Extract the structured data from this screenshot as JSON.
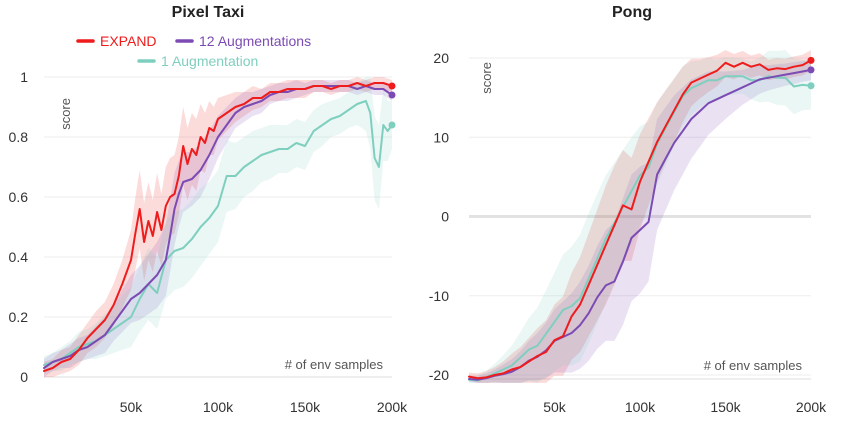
{
  "chart_data": [
    {
      "type": "line",
      "title": "Pixel Taxi",
      "xlabel": "# of env samples",
      "ylabel": "score",
      "xlim": [
        0,
        200000
      ],
      "ylim": [
        0,
        1
      ],
      "xticks": [
        50000,
        100000,
        150000,
        200000
      ],
      "xtick_labels": [
        "50k",
        "100k",
        "150k",
        "200k"
      ],
      "yticks": [
        0,
        0.2,
        0.4,
        0.6,
        0.8,
        1
      ],
      "ytick_labels": [
        "0",
        "0.2",
        "0.4",
        "0.6",
        "0.8",
        "1"
      ],
      "legend": "top",
      "series": [
        {
          "name": "EXPAND",
          "color": "#ee1c1c",
          "x": [
            0,
            5000,
            10000,
            15000,
            20000,
            25000,
            30000,
            35000,
            40000,
            45000,
            50000,
            52500,
            55000,
            57500,
            60000,
            62500,
            65000,
            67500,
            70000,
            72500,
            75000,
            77500,
            80000,
            82500,
            85000,
            87500,
            90000,
            92500,
            95000,
            97500,
            100000,
            105000,
            110000,
            115000,
            120000,
            125000,
            130000,
            135000,
            140000,
            145000,
            150000,
            155000,
            160000,
            165000,
            170000,
            175000,
            180000,
            185000,
            190000,
            195000,
            200000
          ],
          "values": [
            0.02,
            0.03,
            0.05,
            0.06,
            0.09,
            0.13,
            0.16,
            0.19,
            0.24,
            0.31,
            0.39,
            0.48,
            0.56,
            0.45,
            0.52,
            0.47,
            0.55,
            0.49,
            0.57,
            0.6,
            0.61,
            0.67,
            0.77,
            0.71,
            0.76,
            0.74,
            0.8,
            0.78,
            0.83,
            0.82,
            0.86,
            0.88,
            0.9,
            0.91,
            0.93,
            0.93,
            0.95,
            0.95,
            0.96,
            0.96,
            0.96,
            0.97,
            0.97,
            0.96,
            0.97,
            0.97,
            0.98,
            0.97,
            0.98,
            0.98,
            0.97
          ],
          "band": [
            0.03,
            0.03,
            0.04,
            0.04,
            0.05,
            0.05,
            0.06,
            0.06,
            0.07,
            0.08,
            0.1,
            0.12,
            0.13,
            0.13,
            0.13,
            0.12,
            0.13,
            0.12,
            0.13,
            0.13,
            0.13,
            0.13,
            0.13,
            0.12,
            0.12,
            0.12,
            0.11,
            0.1,
            0.09,
            0.08,
            0.07,
            0.06,
            0.05,
            0.04,
            0.04,
            0.03,
            0.03,
            0.03,
            0.03,
            0.03,
            0.03,
            0.02,
            0.02,
            0.02,
            0.02,
            0.02,
            0.02,
            0.02,
            0.02,
            0.02,
            0.02
          ]
        },
        {
          "name": "12 Augmentations",
          "color": "#7b4bb3",
          "x": [
            0,
            5000,
            10000,
            15000,
            20000,
            25000,
            30000,
            35000,
            40000,
            45000,
            50000,
            55000,
            60000,
            65000,
            70000,
            72500,
            75000,
            77500,
            80000,
            85000,
            90000,
            95000,
            100000,
            105000,
            110000,
            115000,
            120000,
            125000,
            130000,
            135000,
            140000,
            145000,
            150000,
            155000,
            160000,
            165000,
            170000,
            175000,
            180000,
            185000,
            190000,
            195000,
            200000
          ],
          "values": [
            0.03,
            0.05,
            0.06,
            0.07,
            0.09,
            0.1,
            0.12,
            0.14,
            0.18,
            0.22,
            0.26,
            0.28,
            0.31,
            0.34,
            0.39,
            0.47,
            0.56,
            0.61,
            0.65,
            0.66,
            0.69,
            0.74,
            0.8,
            0.84,
            0.88,
            0.9,
            0.91,
            0.92,
            0.94,
            0.95,
            0.95,
            0.96,
            0.96,
            0.97,
            0.97,
            0.97,
            0.97,
            0.97,
            0.96,
            0.97,
            0.96,
            0.96,
            0.94
          ],
          "band": [
            0.03,
            0.03,
            0.03,
            0.04,
            0.04,
            0.04,
            0.05,
            0.06,
            0.06,
            0.07,
            0.08,
            0.09,
            0.1,
            0.11,
            0.12,
            0.12,
            0.12,
            0.11,
            0.1,
            0.09,
            0.09,
            0.08,
            0.07,
            0.06,
            0.05,
            0.05,
            0.04,
            0.04,
            0.03,
            0.03,
            0.03,
            0.03,
            0.02,
            0.02,
            0.02,
            0.02,
            0.02,
            0.02,
            0.02,
            0.02,
            0.02,
            0.02,
            0.02
          ]
        },
        {
          "name": "1 Augmentation",
          "color": "#7fcfbf",
          "x": [
            0,
            5000,
            10000,
            15000,
            20000,
            25000,
            30000,
            35000,
            40000,
            45000,
            50000,
            55000,
            60000,
            65000,
            70000,
            75000,
            80000,
            85000,
            90000,
            95000,
            100000,
            105000,
            110000,
            115000,
            120000,
            125000,
            130000,
            135000,
            140000,
            145000,
            150000,
            155000,
            160000,
            165000,
            170000,
            175000,
            180000,
            185000,
            187500,
            190000,
            192500,
            195000,
            197500,
            200000
          ],
          "values": [
            0.04,
            0.05,
            0.06,
            0.08,
            0.1,
            0.11,
            0.12,
            0.14,
            0.16,
            0.18,
            0.2,
            0.26,
            0.31,
            0.28,
            0.39,
            0.42,
            0.43,
            0.46,
            0.5,
            0.53,
            0.57,
            0.67,
            0.67,
            0.7,
            0.72,
            0.74,
            0.75,
            0.76,
            0.76,
            0.78,
            0.77,
            0.82,
            0.84,
            0.86,
            0.87,
            0.89,
            0.91,
            0.92,
            0.88,
            0.73,
            0.7,
            0.84,
            0.82,
            0.84
          ],
          "band": [
            0.03,
            0.03,
            0.04,
            0.04,
            0.05,
            0.05,
            0.06,
            0.07,
            0.08,
            0.09,
            0.1,
            0.11,
            0.12,
            0.12,
            0.13,
            0.13,
            0.13,
            0.13,
            0.13,
            0.12,
            0.12,
            0.12,
            0.11,
            0.1,
            0.1,
            0.09,
            0.09,
            0.08,
            0.08,
            0.08,
            0.08,
            0.07,
            0.07,
            0.06,
            0.06,
            0.06,
            0.07,
            0.1,
            0.12,
            0.14,
            0.14,
            0.12,
            0.1,
            0.08
          ]
        }
      ]
    },
    {
      "type": "line",
      "title": "Pong",
      "xlabel": "# of env samples",
      "ylabel": "score",
      "xlim": [
        0,
        200000
      ],
      "ylim": [
        -21,
        21
      ],
      "xticks": [
        50000,
        100000,
        150000,
        200000
      ],
      "xtick_labels": [
        "50k",
        "100k",
        "150k",
        "200k"
      ],
      "yticks": [
        -20,
        -10,
        0,
        10,
        20
      ],
      "ytick_labels": [
        "-20",
        "-10",
        "0",
        "10",
        "20"
      ],
      "series": [
        {
          "name": "EXPAND",
          "color": "#ee1c1c",
          "x": [
            0,
            5000,
            10000,
            15000,
            20000,
            25000,
            30000,
            35000,
            40000,
            45000,
            50000,
            55000,
            60000,
            65000,
            70000,
            75000,
            80000,
            85000,
            90000,
            95000,
            100000,
            105000,
            110000,
            115000,
            120000,
            125000,
            130000,
            135000,
            140000,
            145000,
            150000,
            155000,
            160000,
            165000,
            170000,
            175000,
            180000,
            185000,
            190000,
            195000,
            200000
          ],
          "values": [
            -20.2,
            -20.4,
            -20.3,
            -20.0,
            -19.8,
            -19.3,
            -19.0,
            -18.3,
            -17.6,
            -17.1,
            -15.6,
            -15.1,
            -12.6,
            -11.1,
            -8.6,
            -6.1,
            -3.6,
            -1.1,
            1.4,
            0.9,
            4.4,
            6.9,
            9.4,
            11.4,
            13.4,
            15.4,
            16.9,
            17.4,
            17.9,
            18.4,
            19.4,
            18.9,
            19.4,
            18.9,
            19.2,
            18.5,
            18.7,
            18.6,
            18.9,
            19.1,
            19.7
          ],
          "band": [
            0.5,
            0.6,
            0.8,
            1.0,
            1.5,
            2.0,
            2.5,
            3.0,
            3.5,
            4.0,
            4.5,
            5.0,
            5.5,
            6.0,
            6.5,
            7.0,
            7.5,
            7.5,
            7.0,
            6.5,
            6.0,
            5.5,
            5.0,
            4.5,
            4.0,
            3.5,
            3.0,
            2.5,
            2.2,
            2.0,
            1.8,
            1.6,
            1.5,
            1.4,
            1.4,
            1.3,
            1.3,
            1.3,
            1.3,
            1.3,
            1.3
          ]
        },
        {
          "name": "12 Augmentations",
          "color": "#7b4bb3",
          "x": [
            0,
            5000,
            10000,
            15000,
            20000,
            25000,
            30000,
            35000,
            40000,
            45000,
            50000,
            55000,
            60000,
            65000,
            70000,
            75000,
            80000,
            85000,
            90000,
            95000,
            100000,
            105000,
            110000,
            115000,
            120000,
            125000,
            130000,
            135000,
            140000,
            145000,
            150000,
            155000,
            160000,
            165000,
            170000,
            175000,
            180000,
            185000,
            190000,
            195000,
            200000
          ],
          "values": [
            -20.5,
            -20.6,
            -20.4,
            -20.1,
            -19.9,
            -19.6,
            -19.0,
            -18.2,
            -17.7,
            -16.9,
            -15.7,
            -15.2,
            -14.7,
            -13.7,
            -12.2,
            -10.2,
            -8.7,
            -8.2,
            -5.7,
            -2.7,
            -1.7,
            -0.7,
            5.3,
            7.3,
            9.3,
            10.8,
            12.3,
            13.3,
            14.3,
            14.8,
            15.3,
            15.8,
            16.3,
            16.8,
            17.3,
            17.5,
            17.7,
            17.9,
            18.1,
            18.3,
            18.5
          ],
          "band": [
            0.4,
            0.5,
            0.6,
            0.8,
            1.2,
            1.6,
            2.0,
            2.5,
            3.0,
            3.5,
            4.0,
            4.5,
            5.0,
            5.5,
            6.0,
            6.5,
            7.0,
            7.5,
            8.0,
            8.0,
            8.0,
            7.5,
            7.0,
            6.5,
            6.0,
            5.5,
            5.0,
            4.5,
            4.0,
            3.5,
            3.0,
            2.6,
            2.2,
            2.0,
            1.8,
            1.6,
            1.5,
            1.4,
            1.4,
            1.3,
            1.3
          ]
        },
        {
          "name": "1 Augmentation",
          "color": "#7fcfbf",
          "x": [
            0,
            5000,
            10000,
            15000,
            20000,
            25000,
            30000,
            35000,
            40000,
            45000,
            50000,
            55000,
            60000,
            65000,
            70000,
            75000,
            80000,
            85000,
            90000,
            95000,
            100000,
            105000,
            110000,
            115000,
            120000,
            125000,
            130000,
            135000,
            140000,
            145000,
            150000,
            155000,
            160000,
            165000,
            170000,
            175000,
            180000,
            185000,
            190000,
            195000,
            200000
          ],
          "values": [
            -20.6,
            -20.7,
            -20.3,
            -19.8,
            -19.3,
            -18.8,
            -17.8,
            -16.8,
            -16.3,
            -14.8,
            -13.3,
            -11.8,
            -11.3,
            -10.3,
            -7.8,
            -5.3,
            -2.8,
            -0.8,
            1.2,
            3.2,
            5.2,
            6.2,
            9.2,
            11.2,
            13.2,
            15.2,
            16.2,
            16.7,
            17.2,
            17.2,
            17.7,
            17.7,
            17.7,
            17.2,
            17.2,
            17.7,
            17.5,
            17.5,
            16.4,
            16.6,
            16.5
          ],
          "band": [
            0.5,
            0.6,
            0.8,
            1.2,
            1.8,
            2.5,
            3.2,
            4.0,
            4.8,
            5.5,
            6.2,
            7.0,
            7.5,
            8.0,
            8.2,
            8.2,
            8.0,
            7.6,
            7.2,
            6.8,
            6.2,
            5.8,
            5.2,
            4.8,
            4.2,
            3.8,
            3.4,
            3.0,
            2.8,
            2.6,
            2.4,
            2.3,
            2.2,
            2.4,
            2.8,
            3.2,
            3.4,
            3.5,
            3.5,
            3.2,
            3.0
          ]
        }
      ]
    }
  ]
}
